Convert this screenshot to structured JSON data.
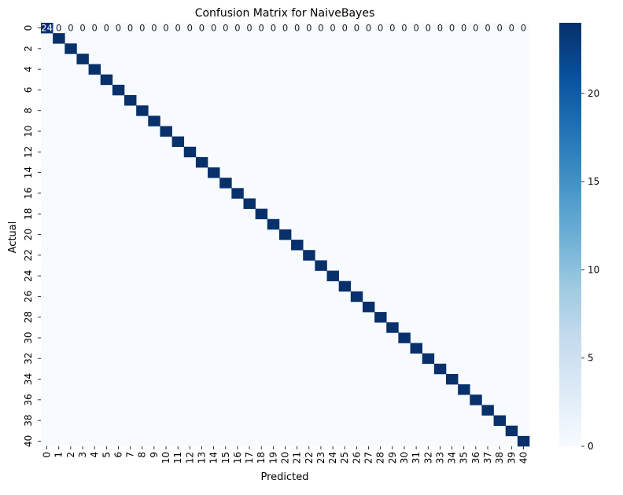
{
  "chart_data": {
    "type": "heatmap",
    "title": "Confusion Matrix for NaiveBayes",
    "xlabel": "Predicted",
    "ylabel": "Actual",
    "n_classes": 41,
    "x_tick_labels": [
      "0",
      "1",
      "2",
      "3",
      "4",
      "5",
      "6",
      "7",
      "8",
      "9",
      "10",
      "11",
      "12",
      "13",
      "14",
      "15",
      "16",
      "17",
      "18",
      "19",
      "20",
      "21",
      "22",
      "23",
      "24",
      "25",
      "26",
      "27",
      "28",
      "29",
      "30",
      "31",
      "32",
      "33",
      "34",
      "35",
      "36",
      "37",
      "38",
      "39",
      "40"
    ],
    "y_tick_labels": [
      "0",
      "2",
      "4",
      "6",
      "8",
      "10",
      "12",
      "14",
      "16",
      "18",
      "20",
      "22",
      "24",
      "26",
      "28",
      "30",
      "32",
      "34",
      "36",
      "38",
      "40"
    ],
    "diagonal_value": 24,
    "off_diagonal_value": 0,
    "visible_annotations_row": 0,
    "colorbar": {
      "min": 0,
      "max": 24,
      "ticks": [
        0,
        5,
        10,
        15,
        20
      ]
    },
    "colormap": "Blues",
    "colors": {
      "low": "#f7fbff",
      "high": "#08306b"
    },
    "grid": false
  }
}
